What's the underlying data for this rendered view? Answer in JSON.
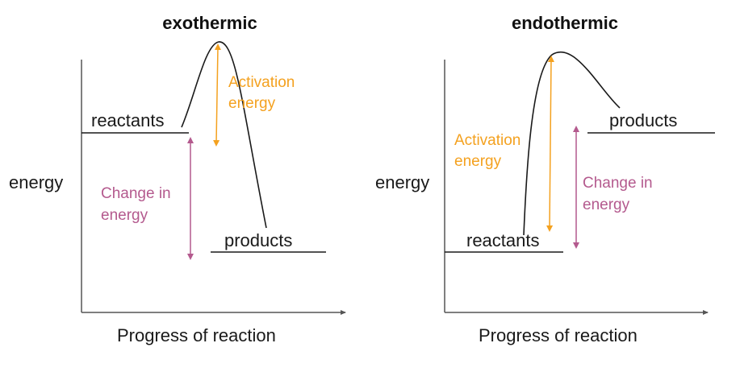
{
  "colors": {
    "line": "#1a1a1a",
    "axis": "#555555",
    "activation": "#f4a11f",
    "change": "#b45a8e"
  },
  "exothermic": {
    "title": "exothermic",
    "y_label": "energy",
    "x_label": "Progress of reaction",
    "reactants_label": "reactants",
    "products_label": "products",
    "activation_line1": "Activation",
    "activation_line2": "energy",
    "change_line1": "Change in",
    "change_line2": "energy"
  },
  "endothermic": {
    "title": "endothermic",
    "y_label": "energy",
    "x_label": "Progress of reaction",
    "reactants_label": "reactants",
    "products_label": "products",
    "activation_line1": "Activation",
    "activation_line2": "energy",
    "change_line1": "Change in",
    "change_line2": "energy"
  }
}
